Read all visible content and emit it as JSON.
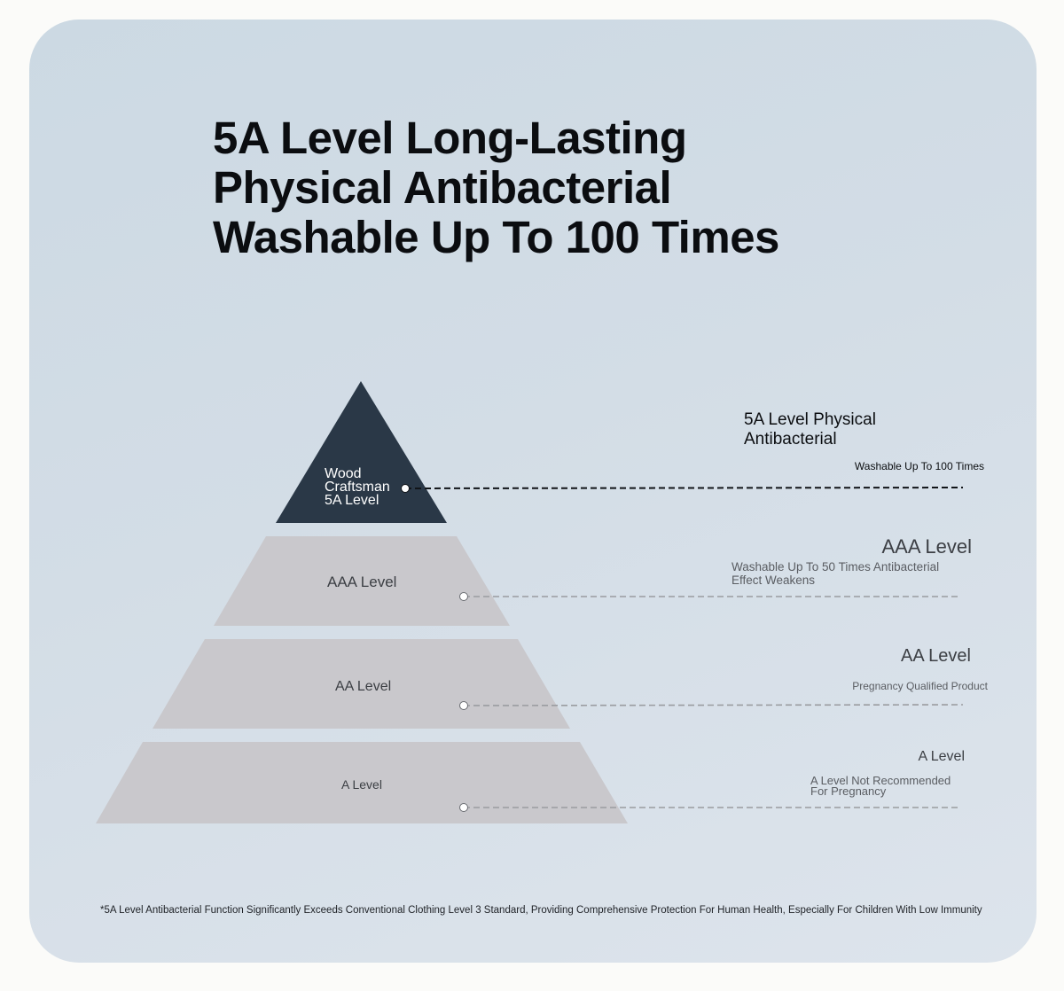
{
  "title_lines": [
    "5A Level Long-Lasting",
    "Physical Antibacterial",
    "Washable Up To 100 Times"
  ],
  "pyramid": {
    "top": {
      "lines": [
        "Wood",
        "Craftsman",
        "5A Level"
      ]
    },
    "tiers": [
      {
        "label": "AAA Level"
      },
      {
        "label": "AA Level"
      },
      {
        "label": "A Level"
      }
    ]
  },
  "legend": [
    {
      "title_lines": [
        "5A Level Physical",
        "Antibacterial"
      ],
      "desc_lines": [
        "Washable Up To 100 Times"
      ]
    },
    {
      "title_lines": [
        "AAA Level"
      ],
      "desc_lines": [
        "Washable Up To 50 Times Antibacterial",
        "Effect Weakens"
      ]
    },
    {
      "title_lines": [
        "AA Level"
      ],
      "desc_lines": [
        "Pregnancy Qualified Product"
      ]
    },
    {
      "title_lines": [
        "A Level"
      ],
      "desc_lines": [
        "A Level Not Recommended",
        "For Pregnancy"
      ]
    }
  ],
  "footnote": "*5A Level Antibacterial Function Significantly Exceeds Conventional Clothing Level 3 Standard, Providing Comprehensive Protection For Human Health, Especially For Children With Low Immunity",
  "colors": {
    "card_bg": "#d0dbe4",
    "top_tier": "#2a3847",
    "lower_tier": "#c9c8cc",
    "text_dark": "#0b0d10",
    "text_gray": "#3c3f44",
    "text_muted": "#5a5d62"
  }
}
